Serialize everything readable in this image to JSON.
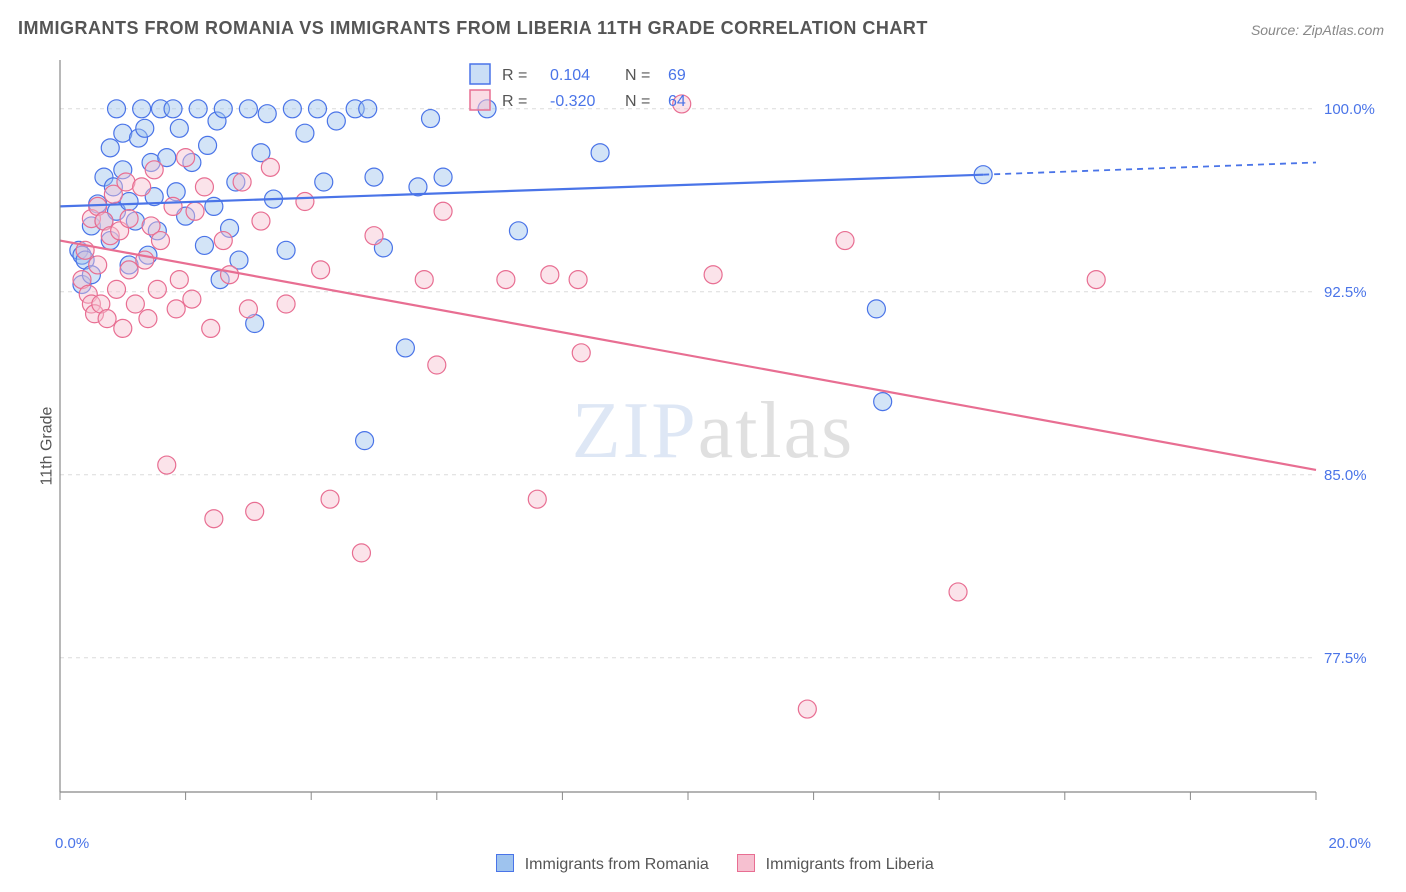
{
  "title": "IMMIGRANTS FROM ROMANIA VS IMMIGRANTS FROM LIBERIA 11TH GRADE CORRELATION CHART",
  "source": "Source: ZipAtlas.com",
  "ylabel": "11th Grade",
  "watermark_a": "ZIP",
  "watermark_b": "atlas",
  "chart": {
    "type": "scatter-with-trendlines",
    "background_color": "#ffffff",
    "grid_color": "#dcdcdc",
    "axis_color": "#888888",
    "label_color": "#4a74e8",
    "xlim": [
      0,
      20
    ],
    "ylim": [
      72,
      102
    ],
    "y_ticks": [
      77.5,
      85.0,
      92.5,
      100.0
    ],
    "y_tick_labels": [
      "77.5%",
      "85.0%",
      "92.5%",
      "100.0%"
    ],
    "x_minor_ticks": [
      0,
      2,
      4,
      6,
      8,
      10,
      12,
      14,
      16,
      18,
      20
    ],
    "x_end_labels": [
      "0.0%",
      "20.0%"
    ],
    "marker_radius": 9,
    "marker_fill_opacity": 0.45,
    "marker_stroke_width": 1.2,
    "trend_line_width": 2.2
  },
  "series": [
    {
      "name": "Immigrants from Romania",
      "color_fill": "#9ec3ee",
      "color_stroke": "#4a74e8",
      "R": "0.104",
      "N": "69",
      "trend": {
        "x1": 0,
        "y1": 96.0,
        "x2": 14.7,
        "y2": 97.3,
        "ext_x2": 20,
        "ext_y2": 97.8
      },
      "points": [
        [
          0.3,
          94.2
        ],
        [
          0.35,
          94.0
        ],
        [
          0.4,
          93.8
        ],
        [
          0.35,
          92.8
        ],
        [
          0.5,
          93.2
        ],
        [
          0.5,
          95.2
        ],
        [
          0.6,
          96.1
        ],
        [
          0.7,
          95.4
        ],
        [
          0.7,
          97.2
        ],
        [
          0.8,
          94.6
        ],
        [
          0.8,
          98.4
        ],
        [
          0.85,
          96.8
        ],
        [
          0.9,
          95.8
        ],
        [
          0.9,
          100.0
        ],
        [
          1.0,
          99.0
        ],
        [
          1.0,
          97.5
        ],
        [
          1.1,
          93.6
        ],
        [
          1.1,
          96.2
        ],
        [
          1.2,
          95.4
        ],
        [
          1.25,
          98.8
        ],
        [
          1.3,
          100.0
        ],
        [
          1.35,
          99.2
        ],
        [
          1.4,
          94.0
        ],
        [
          1.45,
          97.8
        ],
        [
          1.5,
          96.4
        ],
        [
          1.55,
          95.0
        ],
        [
          1.6,
          100.0
        ],
        [
          1.7,
          98.0
        ],
        [
          1.8,
          100.0
        ],
        [
          1.85,
          96.6
        ],
        [
          1.9,
          99.2
        ],
        [
          2.0,
          95.6
        ],
        [
          2.1,
          97.8
        ],
        [
          2.2,
          100.0
        ],
        [
          2.3,
          94.4
        ],
        [
          2.35,
          98.5
        ],
        [
          2.45,
          96.0
        ],
        [
          2.5,
          99.5
        ],
        [
          2.55,
          93.0
        ],
        [
          2.6,
          100.0
        ],
        [
          2.7,
          95.1
        ],
        [
          2.8,
          97.0
        ],
        [
          2.85,
          93.8
        ],
        [
          3.0,
          100.0
        ],
        [
          3.1,
          91.2
        ],
        [
          3.2,
          98.2
        ],
        [
          3.3,
          99.8
        ],
        [
          3.4,
          96.3
        ],
        [
          3.6,
          94.2
        ],
        [
          3.7,
          100.0
        ],
        [
          3.9,
          99.0
        ],
        [
          4.1,
          100.0
        ],
        [
          4.2,
          97.0
        ],
        [
          4.4,
          99.5
        ],
        [
          4.7,
          100.0
        ],
        [
          4.85,
          86.4
        ],
        [
          4.9,
          100.0
        ],
        [
          5.0,
          97.2
        ],
        [
          5.15,
          94.3
        ],
        [
          5.5,
          90.2
        ],
        [
          5.7,
          96.8
        ],
        [
          5.9,
          99.6
        ],
        [
          6.1,
          97.2
        ],
        [
          6.8,
          100.0
        ],
        [
          7.3,
          95.0
        ],
        [
          8.6,
          98.2
        ],
        [
          13.0,
          91.8
        ],
        [
          13.1,
          88.0
        ],
        [
          14.7,
          97.3
        ]
      ]
    },
    {
      "name": "Immigrants from Liberia",
      "color_fill": "#f6c0d0",
      "color_stroke": "#e86e92",
      "R": "-0.320",
      "N": "64",
      "trend": {
        "x1": 0,
        "y1": 94.6,
        "x2": 20,
        "y2": 85.2,
        "ext_x2": 20,
        "ext_y2": 85.2
      },
      "points": [
        [
          0.35,
          93.0
        ],
        [
          0.4,
          94.2
        ],
        [
          0.45,
          92.4
        ],
        [
          0.5,
          92.0
        ],
        [
          0.5,
          95.5
        ],
        [
          0.55,
          91.6
        ],
        [
          0.6,
          96.0
        ],
        [
          0.6,
          93.6
        ],
        [
          0.65,
          92.0
        ],
        [
          0.7,
          95.4
        ],
        [
          0.75,
          91.4
        ],
        [
          0.8,
          94.8
        ],
        [
          0.85,
          96.5
        ],
        [
          0.9,
          92.6
        ],
        [
          0.95,
          95.0
        ],
        [
          1.0,
          91.0
        ],
        [
          1.05,
          97.0
        ],
        [
          1.1,
          93.4
        ],
        [
          1.1,
          95.5
        ],
        [
          1.2,
          92.0
        ],
        [
          1.3,
          96.8
        ],
        [
          1.35,
          93.8
        ],
        [
          1.4,
          91.4
        ],
        [
          1.45,
          95.2
        ],
        [
          1.5,
          97.5
        ],
        [
          1.55,
          92.6
        ],
        [
          1.6,
          94.6
        ],
        [
          1.7,
          85.4
        ],
        [
          1.8,
          96.0
        ],
        [
          1.85,
          91.8
        ],
        [
          1.9,
          93.0
        ],
        [
          2.0,
          98.0
        ],
        [
          2.1,
          92.2
        ],
        [
          2.15,
          95.8
        ],
        [
          2.3,
          96.8
        ],
        [
          2.4,
          91.0
        ],
        [
          2.45,
          83.2
        ],
        [
          2.6,
          94.6
        ],
        [
          2.7,
          93.2
        ],
        [
          2.9,
          97.0
        ],
        [
          3.0,
          91.8
        ],
        [
          3.1,
          83.5
        ],
        [
          3.2,
          95.4
        ],
        [
          3.35,
          97.6
        ],
        [
          3.6,
          92.0
        ],
        [
          3.9,
          96.2
        ],
        [
          4.15,
          93.4
        ],
        [
          4.3,
          84.0
        ],
        [
          4.8,
          81.8
        ],
        [
          5.0,
          94.8
        ],
        [
          5.8,
          93.0
        ],
        [
          6.0,
          89.5
        ],
        [
          6.1,
          95.8
        ],
        [
          7.1,
          93.0
        ],
        [
          7.6,
          84.0
        ],
        [
          7.8,
          93.2
        ],
        [
          8.25,
          93.0
        ],
        [
          8.3,
          90.0
        ],
        [
          9.9,
          100.2
        ],
        [
          10.4,
          93.2
        ],
        [
          11.9,
          75.4
        ],
        [
          14.3,
          80.2
        ],
        [
          16.5,
          93.0
        ],
        [
          12.5,
          94.6
        ]
      ]
    }
  ],
  "stats_legend": {
    "label_R": "R =",
    "label_N": "N ="
  },
  "bottom_legend": {
    "items": [
      "Immigrants from Romania",
      "Immigrants from Liberia"
    ]
  }
}
